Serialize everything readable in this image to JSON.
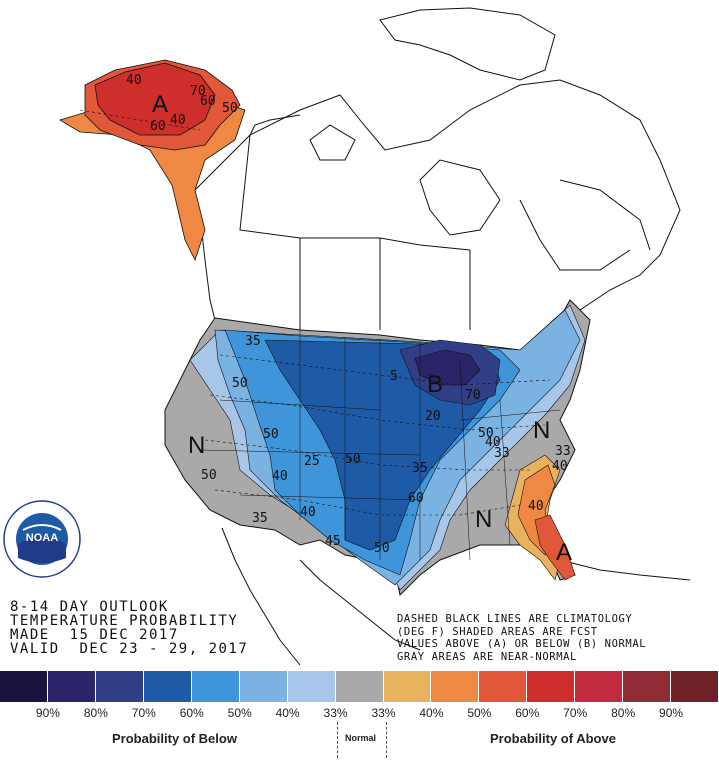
{
  "map": {
    "region_labels": [
      {
        "id": "alaska-above",
        "text": "A"
      },
      {
        "id": "lakes-below",
        "text": "B"
      },
      {
        "id": "west-normal",
        "text": "N"
      },
      {
        "id": "midatlantic-normal",
        "text": "N"
      },
      {
        "id": "southeast-normal",
        "text": "N"
      },
      {
        "id": "florida-above",
        "text": "A"
      }
    ],
    "contour_labels": [
      "40",
      "70",
      "60",
      "50",
      "60",
      "40",
      "35",
      "50",
      "50",
      "5",
      "70",
      "50",
      "20",
      "50",
      "40",
      "33",
      "25",
      "40",
      "35",
      "40",
      "50",
      "45",
      "50",
      "60",
      "40",
      "35",
      "33",
      "40"
    ]
  },
  "info_lines": [
    "8-14 DAY OUTLOOK",
    "TEMPERATURE PROBABILITY",
    "MADE  15 DEC 2017",
    "VALID  DEC 23 - 29, 2017"
  ],
  "note_lines": [
    "DASHED BLACK LINES ARE CLIMATOLOGY",
    "(DEG F) SHADED AREAS ARE FCST",
    "VALUES ABOVE (A) OR BELOW (B) NORMAL",
    "GRAY AREAS ARE NEAR-NORMAL"
  ],
  "logo": {
    "text": "NOAA"
  },
  "legend": {
    "colors": [
      "#1c1340",
      "#2a2468",
      "#303f86",
      "#1f5aa6",
      "#3e95d9",
      "#7ab2e2",
      "#a8c7e8",
      "#a9a9a9",
      "#e8b25e",
      "#ee8843",
      "#e0573a",
      "#ce2f2c",
      "#c22b3e",
      "#902a34",
      "#6e2126"
    ],
    "ticks": [
      "90%",
      "80%",
      "70%",
      "60%",
      "50%",
      "40%",
      "33%",
      "33%",
      "40%",
      "50%",
      "60%",
      "70%",
      "80%",
      "90%"
    ],
    "below_label": "Probability of Below",
    "normal_label": "Normal",
    "above_label": "Probability of Above"
  }
}
